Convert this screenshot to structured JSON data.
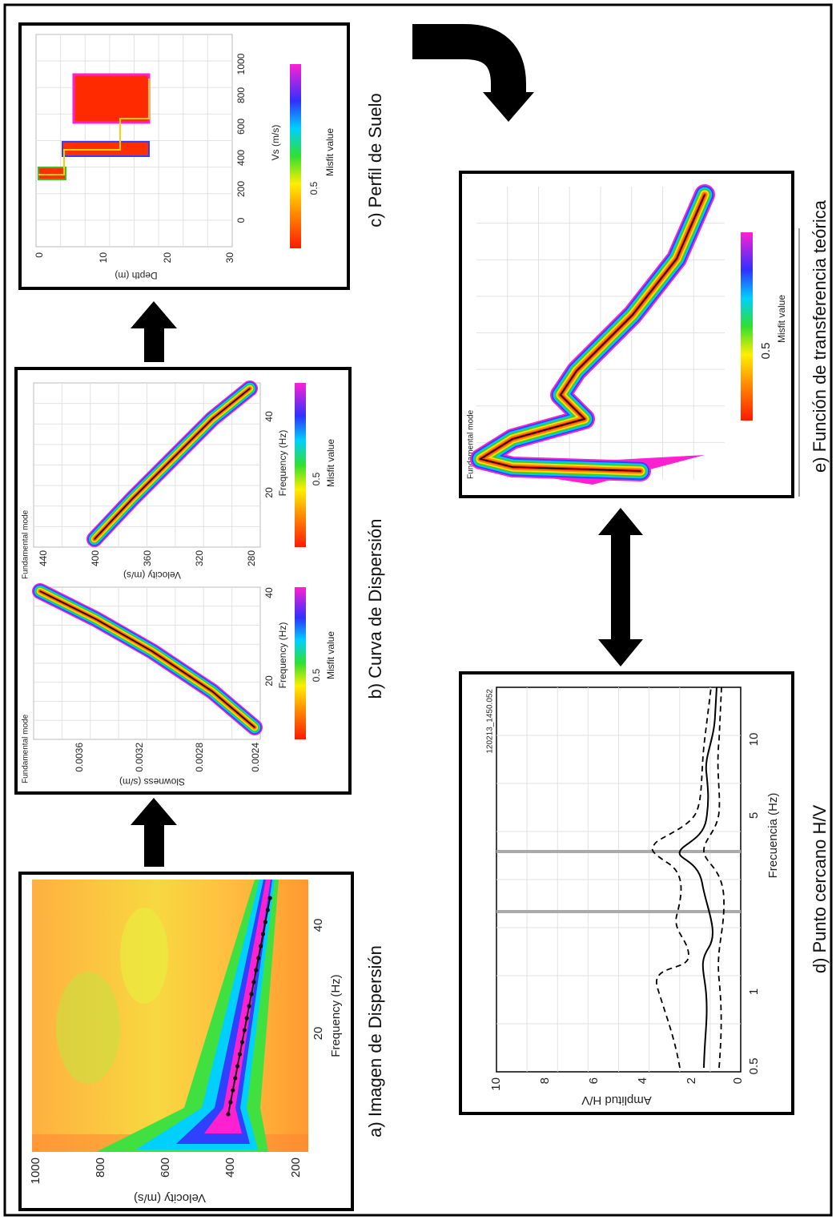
{
  "panel_a": {
    "caption": "a) Imagen de Dispersión",
    "y_axis_label": "Velocity (m/s)",
    "y_ticks": [
      "1000",
      "800",
      "600",
      "400",
      "200"
    ],
    "x_axis_label": "Frequency (Hz)",
    "x_ticks": [
      "20",
      "40"
    ]
  },
  "panel_b": {
    "caption": "b) Curva de Dispersión",
    "plots": [
      {
        "title": "Fundamental mode",
        "y_axis_label": "Slowness (s/m)",
        "y_ticks": [
          "0.0036",
          "0.0032",
          "0.0028",
          "0.0024"
        ],
        "x_axis_label": "Frequency (Hz)",
        "x_ticks": [
          "20",
          "40"
        ],
        "colorbar_label": "Misfit value",
        "colorbar_ticks": [
          "0.5"
        ]
      },
      {
        "title": "Fundamental mode",
        "y_axis_label": "Velocity (m/s)",
        "y_ticks": [
          "440",
          "400",
          "360",
          "320",
          "280"
        ],
        "x_axis_label": "Frequency (Hz)",
        "x_ticks": [
          "20",
          "40"
        ],
        "colorbar_label": "Misfit value",
        "colorbar_ticks": [
          "0.5"
        ]
      }
    ]
  },
  "panel_c": {
    "caption": "c) Perfil de Suelo",
    "y_axis_label": "Depth (m)",
    "y_ticks": [
      "0",
      "10",
      "20",
      "30"
    ],
    "x_axis_label": "Vs (m/s)",
    "x_ticks": [
      "0",
      "200",
      "400",
      "600",
      "800",
      "1000"
    ],
    "colorbar_label": "Misfit value",
    "colorbar_ticks": [
      "0.5"
    ]
  },
  "panel_d": {
    "caption": "d) Punto cercano H/V",
    "title": "120213_1450.052",
    "y_axis_label": "Amplitud H/V",
    "y_ticks": [
      "10",
      "8",
      "6",
      "4",
      "2",
      "0"
    ],
    "x_axis_label": "Frecuencia (Hz)",
    "x_ticks": [
      "0.5",
      "1",
      "5",
      "10"
    ]
  },
  "panel_e": {
    "caption": "e) Función de transferencia teórica",
    "title": "Fundamental mode",
    "colorbar_label": "Misfit value",
    "colorbar_ticks": [
      "0.5"
    ]
  }
}
